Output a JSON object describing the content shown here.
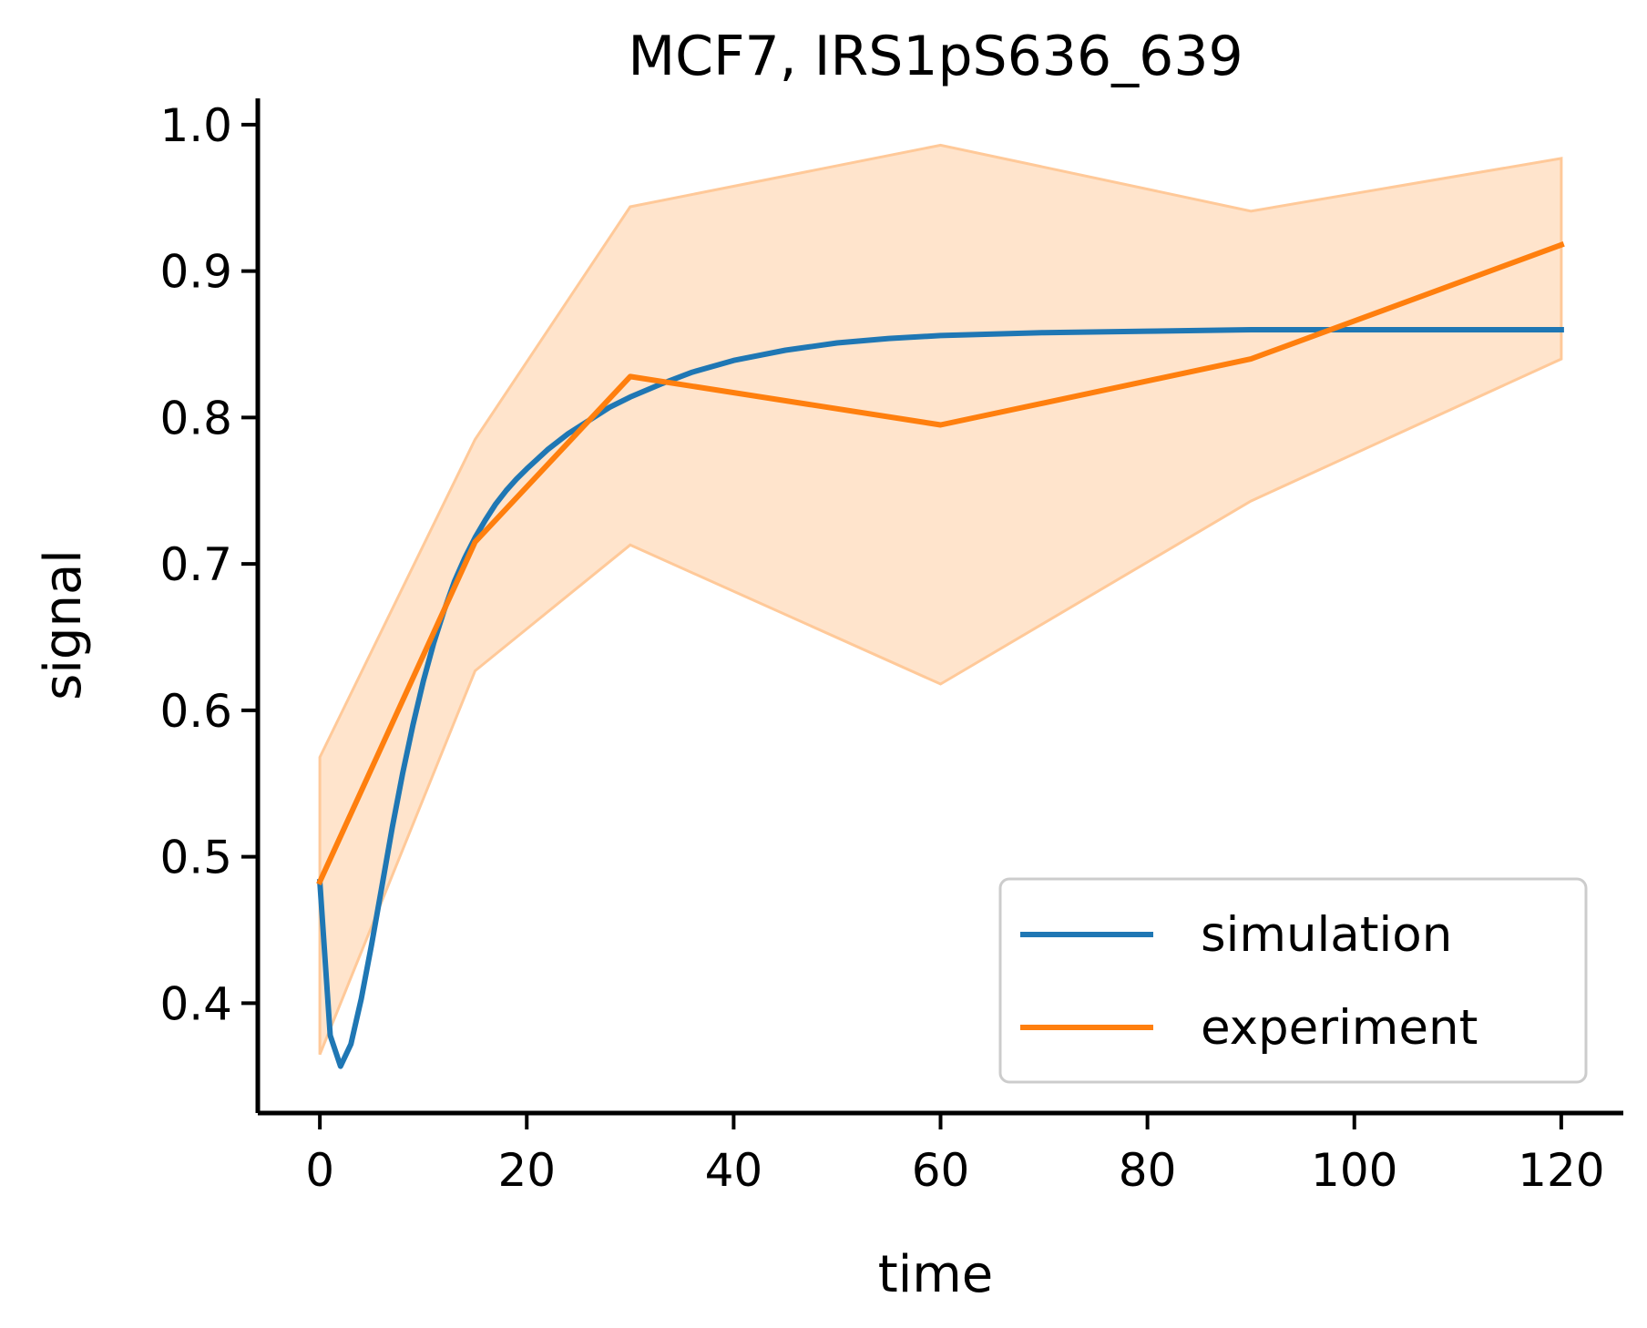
{
  "chart_data": {
    "type": "line",
    "title": "MCF7, IRS1pS636_639",
    "xlabel": "time",
    "ylabel": "signal",
    "xlim": [
      -6,
      126
    ],
    "ylim": [
      0.325,
      1.018
    ],
    "xticks": [
      0,
      20,
      40,
      60,
      80,
      100,
      120
    ],
    "yticks": [
      0.4,
      0.5,
      0.6,
      0.7,
      0.8,
      0.9,
      1.0
    ],
    "xtick_labels": [
      "0",
      "20",
      "40",
      "60",
      "80",
      "100",
      "120"
    ],
    "ytick_labels": [
      "0.4",
      "0.5",
      "0.6",
      "0.7",
      "0.8",
      "0.9",
      "1.0"
    ],
    "grid": false,
    "legend_position": "bottom-right",
    "series": [
      {
        "name": "simulation",
        "color": "#1f77b4",
        "x": [
          0,
          1,
          2,
          3,
          4,
          5,
          6,
          7,
          8,
          9,
          10,
          11,
          12,
          13,
          14,
          15,
          16,
          17,
          18,
          19,
          20,
          22,
          24,
          26,
          28,
          30,
          33,
          36,
          40,
          45,
          50,
          55,
          60,
          70,
          80,
          90,
          100,
          110,
          120
        ],
        "y": [
          0.483,
          0.378,
          0.357,
          0.372,
          0.403,
          0.44,
          0.48,
          0.52,
          0.557,
          0.59,
          0.62,
          0.646,
          0.668,
          0.688,
          0.704,
          0.718,
          0.73,
          0.741,
          0.75,
          0.758,
          0.765,
          0.778,
          0.789,
          0.798,
          0.807,
          0.814,
          0.823,
          0.831,
          0.839,
          0.846,
          0.851,
          0.854,
          0.856,
          0.858,
          0.859,
          0.86,
          0.86,
          0.86,
          0.86
        ]
      },
      {
        "name": "experiment",
        "color": "#ff7f0e",
        "x": [
          0,
          15,
          30,
          60,
          90,
          120
        ],
        "y": [
          0.483,
          0.715,
          0.828,
          0.795,
          0.84,
          0.918
        ],
        "band_lower": [
          0.365,
          0.627,
          0.713,
          0.618,
          0.743,
          0.84
        ],
        "band_upper": [
          0.568,
          0.785,
          0.944,
          0.986,
          0.941,
          0.977
        ],
        "band_color": "#ffe4cc",
        "band_edge_color": "#ffc999"
      }
    ]
  }
}
